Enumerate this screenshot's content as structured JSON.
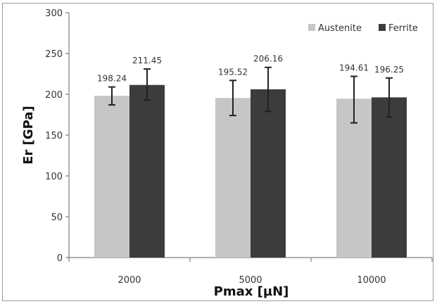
{
  "chart_data": {
    "type": "bar",
    "title": "",
    "xlabel": "Pmax [µN]",
    "ylabel": "Er [GPa]",
    "categories": [
      "2000",
      "5000",
      "10000"
    ],
    "ylim": [
      0,
      300
    ],
    "yticks": [
      "0",
      "50",
      "100",
      "150",
      "200",
      "250",
      "300"
    ],
    "grid": false,
    "legend_position": "top-right",
    "series": [
      {
        "name": "Austenite",
        "color": "#c6c6c6",
        "values": [
          198.24,
          195.52,
          194.61
        ],
        "labels": [
          "198.24",
          "195.52",
          "194.61"
        ],
        "error_low": [
          187,
          174,
          165
        ],
        "error_high": [
          209,
          217,
          222
        ]
      },
      {
        "name": "Ferrite",
        "color": "#3c3c3c",
        "values": [
          211.45,
          206.16,
          196.25
        ],
        "labels": [
          "211.45",
          "206.16",
          "196.25"
        ],
        "error_low": [
          193,
          179,
          172
        ],
        "error_high": [
          231,
          233,
          220
        ]
      }
    ]
  }
}
